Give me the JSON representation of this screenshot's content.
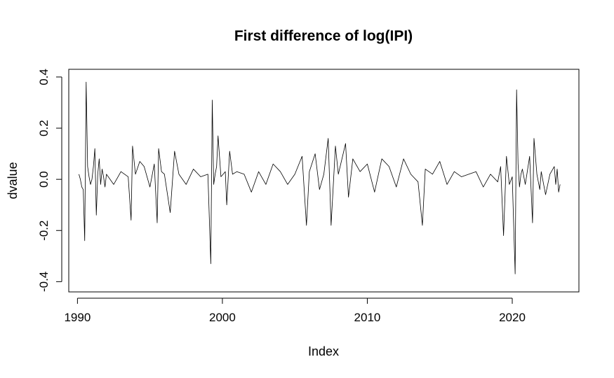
{
  "chart_data": {
    "type": "line",
    "title": "First difference of log(IPI)",
    "xlabel": "Index",
    "ylabel": "dvalue",
    "x_ticks": [
      "1990",
      "2000",
      "2010",
      "2020"
    ],
    "y_ticks": [
      "-0.4",
      "-0.2",
      "0.0",
      "0.2",
      "0.4"
    ],
    "xlim": [
      1989.4,
      2024.6
    ],
    "ylim": [
      -0.44,
      0.43
    ],
    "grid": false,
    "series": [
      {
        "color": "#000000",
        "x": [
          1990.1,
          1990.2,
          1990.3,
          1990.4,
          1990.5,
          1990.6,
          1990.7,
          1990.8,
          1990.9,
          1991.0,
          1991.1,
          1991.2,
          1991.3,
          1991.4,
          1991.5,
          1991.6,
          1991.7,
          1991.8,
          1991.9,
          1992.0,
          1992.5,
          1993.0,
          1993.5,
          1993.7,
          1993.8,
          1994.0,
          1994.3,
          1994.6,
          1995.0,
          1995.3,
          1995.5,
          1995.6,
          1995.8,
          1996.0,
          1996.4,
          1996.7,
          1997.0,
          1997.5,
          1998.0,
          1998.5,
          1999.0,
          1999.2,
          1999.3,
          1999.4,
          1999.5,
          1999.6,
          1999.7,
          1999.9,
          2000.2,
          2000.3,
          2000.5,
          2000.7,
          2001.0,
          2001.5,
          2002.0,
          2002.5,
          2003.0,
          2003.5,
          2004.0,
          2004.5,
          2005.0,
          2005.5,
          2005.8,
          2006.0,
          2006.4,
          2006.7,
          2007.0,
          2007.3,
          2007.5,
          2007.8,
          2008.0,
          2008.5,
          2008.7,
          2009.0,
          2009.5,
          2010.0,
          2010.5,
          2011.0,
          2011.5,
          2012.0,
          2012.5,
          2013.0,
          2013.5,
          2013.8,
          2014.0,
          2014.5,
          2015.0,
          2015.5,
          2016.0,
          2016.5,
          2017.0,
          2017.5,
          2018.0,
          2018.5,
          2019.0,
          2019.2,
          2019.4,
          2019.6,
          2019.8,
          2020.0,
          2020.2,
          2020.3,
          2020.4,
          2020.5,
          2020.6,
          2020.7,
          2020.9,
          2021.2,
          2021.4,
          2021.5,
          2021.7,
          2021.9,
          2022.0,
          2022.3,
          2022.6,
          2022.9,
          2023.0,
          2023.1,
          2023.2,
          2023.3
        ],
        "y": [
          0.02,
          0.0,
          -0.03,
          -0.04,
          -0.24,
          0.38,
          0.05,
          0.01,
          -0.02,
          0.0,
          0.05,
          0.12,
          -0.14,
          0.02,
          0.08,
          -0.02,
          0.04,
          0.01,
          -0.03,
          0.02,
          -0.02,
          0.03,
          0.01,
          -0.16,
          0.13,
          0.02,
          0.07,
          0.05,
          -0.03,
          0.06,
          -0.17,
          0.12,
          0.03,
          0.02,
          -0.13,
          0.11,
          0.02,
          -0.02,
          0.04,
          0.01,
          0.02,
          -0.33,
          0.31,
          -0.02,
          0.02,
          0.05,
          0.17,
          0.01,
          0.03,
          -0.1,
          0.11,
          0.02,
          0.03,
          0.02,
          -0.05,
          0.03,
          -0.02,
          0.06,
          0.03,
          -0.02,
          0.02,
          0.09,
          -0.18,
          0.03,
          0.1,
          -0.04,
          0.02,
          0.16,
          -0.18,
          0.13,
          0.02,
          0.14,
          -0.07,
          0.08,
          0.03,
          0.06,
          -0.05,
          0.08,
          0.05,
          -0.03,
          0.08,
          0.02,
          -0.01,
          -0.18,
          0.04,
          0.02,
          0.07,
          -0.02,
          0.03,
          0.01,
          0.02,
          0.03,
          -0.03,
          0.02,
          -0.01,
          0.05,
          -0.22,
          0.09,
          -0.02,
          0.01,
          -0.37,
          0.35,
          0.06,
          -0.03,
          0.02,
          0.04,
          -0.02,
          0.09,
          -0.17,
          0.16,
          0.02,
          -0.04,
          0.03,
          -0.06,
          0.02,
          0.05,
          -0.02,
          0.04,
          -0.05,
          -0.02
        ]
      }
    ]
  }
}
